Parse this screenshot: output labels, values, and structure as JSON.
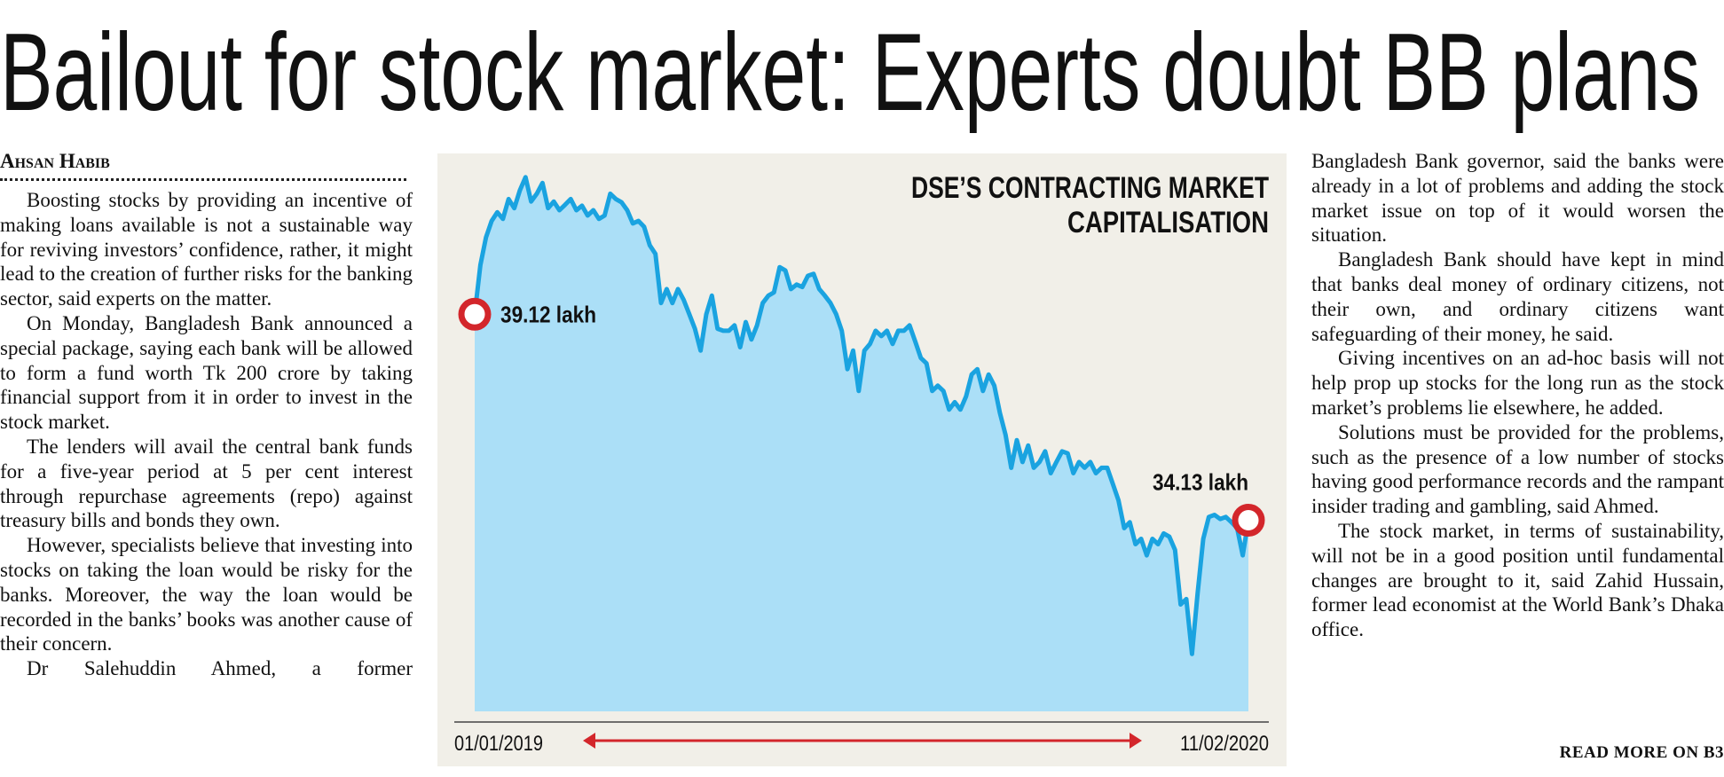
{
  "headline": "Bailout for stock market: Experts doubt BB plans",
  "byline": "Ahsan Habib",
  "article": {
    "left": [
      "Boosting stocks by providing an incentive of making loans available is not a sustainable way for reviving investors’ confidence, rather, it might lead to the creation of further risks for the banking sector, said experts on the matter.",
      "On Monday, Bangladesh Bank announced a special package, saying each bank will be allowed to form a fund worth Tk 200 crore by taking financial support from it in order to invest in the stock market.",
      "The lenders will avail the central bank funds for a five-year period at 5 per cent interest through repurchase agreements (repo) against treasury bills and bonds they own.",
      "However, specialists believe that investing into stocks on taking the loan would be risky for the banks. Moreover, the way the loan would be recorded in the banks’ books was another cause of their concern.",
      "Dr Salehuddin Ahmed, a former"
    ],
    "right": [
      "Bangladesh Bank governor, said the banks were already in a lot of problems and adding the stock market issue on top of it would worsen the situation.",
      "Bangladesh Bank should have kept in mind that banks deal money of ordinary citizens, not their own, and ordinary citizens want safeguarding of their money, he said.",
      "Giving incentives on an ad-hoc basis will not help prop up stocks for the long run as the stock market’s problems lie elsewhere, he added.",
      "Solutions must be provided for the problems, such as the presence of a low number of stocks having good performance records and the rampant insider trading and gambling, said Ahmed.",
      "The stock market, in terms of sustainability, will not be in a good position until fundamental changes are brought to it, said Zahid Hussain, former lead economist at the World Bank’s Dhaka office."
    ]
  },
  "read_more": "READ MORE ON B3",
  "chart_data": {
    "type": "area",
    "title": [
      "DSE’S CONTRACTING MARKET",
      "CAPITALISATION"
    ],
    "color": "#1aa3e0",
    "fill": "#abdff7",
    "marker_color": "#d3262b",
    "ylim": [
      29.5,
      42.8
    ],
    "categories": [
      "01/01/2019",
      null,
      null,
      null,
      null,
      null,
      null,
      null,
      null,
      null,
      null,
      null,
      null,
      null,
      null,
      null,
      null,
      null,
      null,
      null,
      null,
      null,
      null,
      null,
      null,
      null,
      null,
      null,
      null,
      null,
      null,
      null,
      null,
      null,
      null,
      null,
      null,
      null,
      null,
      null,
      null,
      null,
      null,
      null,
      null,
      null,
      null,
      null,
      null,
      null,
      null,
      null,
      null,
      null,
      null,
      null,
      null,
      null,
      null,
      null,
      null,
      null,
      null,
      null,
      null,
      null,
      null,
      null,
      null,
      null,
      null,
      null,
      null,
      null,
      null,
      null,
      null,
      null,
      null,
      null,
      null,
      null,
      null,
      null,
      null,
      null,
      null,
      null,
      null,
      null,
      null,
      null,
      null,
      null,
      null,
      null,
      null,
      null,
      null,
      null,
      null,
      null,
      null,
      null,
      null,
      null,
      null,
      null,
      null,
      null,
      null,
      null,
      null,
      null,
      null,
      null,
      null,
      null,
      null,
      null,
      null,
      null,
      null,
      null,
      null,
      null,
      null,
      null,
      null,
      null,
      null,
      null,
      null,
      null,
      null,
      null,
      null,
      "11/02/2020"
    ],
    "values": [
      39.12,
      40.31,
      40.98,
      41.38,
      41.59,
      41.43,
      41.91,
      41.69,
      42.12,
      42.44,
      41.85,
      42.04,
      42.3,
      41.69,
      41.85,
      41.64,
      41.77,
      41.91,
      41.64,
      41.75,
      41.51,
      41.64,
      41.43,
      41.51,
      42.04,
      41.91,
      41.83,
      41.64,
      41.32,
      41.38,
      41.24,
      40.79,
      40.58,
      39.39,
      39.73,
      39.39,
      39.73,
      39.47,
      39.12,
      38.77,
      38.24,
      39.12,
      39.57,
      38.77,
      38.72,
      38.72,
      38.85,
      38.32,
      38.93,
      38.51,
      38.85,
      39.39,
      39.57,
      39.65,
      40.26,
      40.18,
      39.73,
      39.84,
      39.78,
      40.05,
      40.1,
      39.73,
      39.57,
      39.39,
      39.12,
      38.72,
      37.79,
      38.24,
      37.26,
      38.24,
      38.4,
      38.72,
      38.59,
      38.72,
      38.4,
      38.72,
      38.72,
      38.85,
      38.46,
      38.06,
      37.93,
      37.26,
      37.39,
      37.26,
      36.81,
      36.99,
      36.81,
      37.13,
      37.66,
      37.79,
      37.26,
      37.66,
      37.39,
      36.73,
      36.2,
      35.4,
      36.07,
      35.54,
      35.94,
      35.4,
      35.54,
      35.8,
      35.27,
      35.54,
      35.8,
      35.75,
      35.27,
      35.54,
      35.4,
      35.54,
      35.27,
      35.4,
      35.4,
      35.01,
      34.61,
      33.94,
      34.08,
      33.55,
      33.68,
      33.28,
      33.68,
      33.55,
      33.81,
      33.73,
      33.41,
      32.09,
      32.22,
      30.89,
      32.35,
      33.68,
      34.21,
      34.26,
      34.16,
      34.21,
      34.08,
      33.94,
      33.28,
      34.13
    ],
    "value_labels": [
      "39.12 lakh",
      null,
      null,
      null,
      null,
      null,
      null,
      null,
      null,
      null,
      null,
      null,
      null,
      null,
      null,
      null,
      null,
      null,
      null,
      null,
      null,
      null,
      null,
      null,
      null,
      null,
      null,
      null,
      null,
      null,
      null,
      null,
      null,
      null,
      null,
      null,
      null,
      null,
      null,
      null,
      null,
      null,
      null,
      null,
      null,
      null,
      null,
      null,
      null,
      null,
      null,
      null,
      null,
      null,
      null,
      null,
      null,
      null,
      null,
      null,
      null,
      null,
      null,
      null,
      null,
      null,
      null,
      null,
      null,
      null,
      null,
      null,
      null,
      null,
      null,
      null,
      null,
      null,
      null,
      null,
      null,
      null,
      null,
      null,
      null,
      null,
      null,
      null,
      null,
      null,
      null,
      null,
      null,
      null,
      null,
      null,
      null,
      null,
      null,
      null,
      null,
      null,
      null,
      null,
      null,
      null,
      null,
      null,
      null,
      null,
      null,
      null,
      null,
      null,
      null,
      null,
      null,
      null,
      null,
      null,
      null,
      null,
      null,
      null,
      null,
      null,
      null,
      null,
      null,
      null,
      null,
      null,
      null,
      null,
      null,
      null,
      null,
      "34.13 lakh"
    ]
  }
}
